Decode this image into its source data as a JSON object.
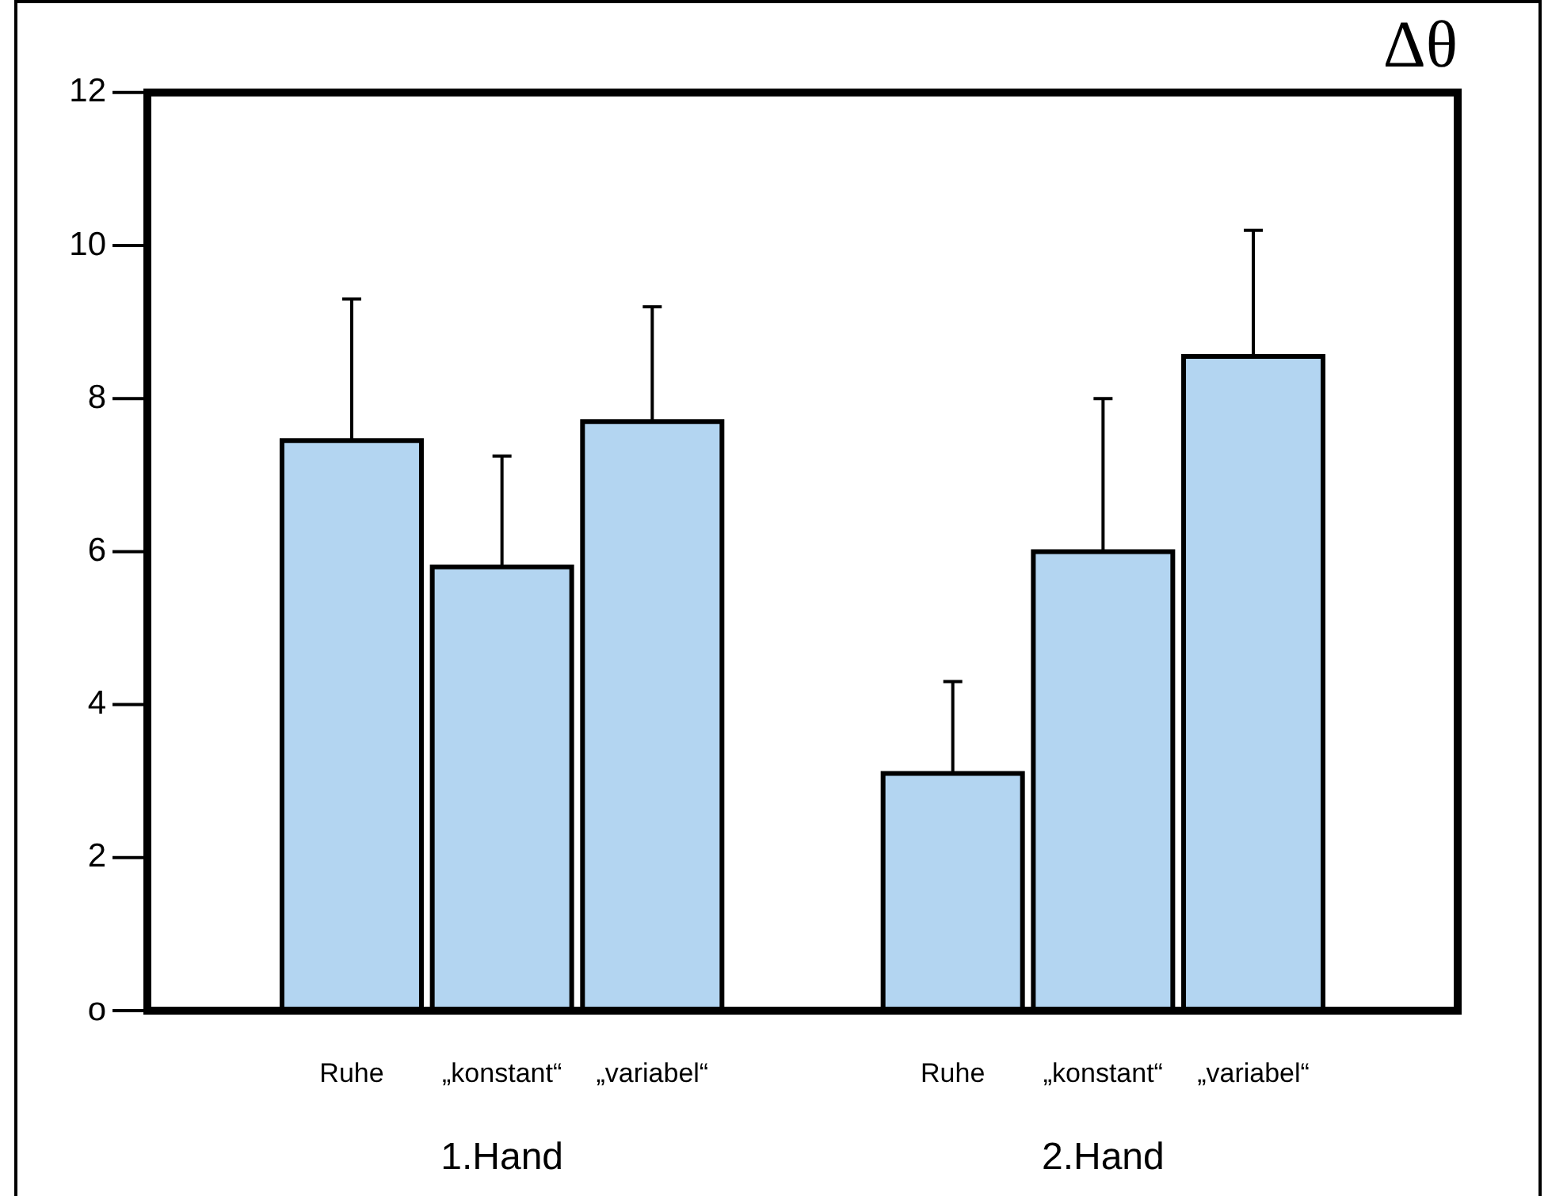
{
  "chart_data": {
    "type": "bar",
    "title": "Δθ",
    "categories": [
      "Ruhe",
      "„konstant“",
      "„variabel“",
      null,
      "Ruhe",
      "„konstant“",
      "„variabel“"
    ],
    "values": [
      7.45,
      5.8,
      7.7,
      null,
      3.1,
      6.0,
      8.55
    ],
    "errors": [
      [
        7.45,
        9.3
      ],
      [
        5.8,
        7.25
      ],
      [
        7.7,
        9.2
      ],
      null,
      [
        3.1,
        4.3
      ],
      [
        6.0,
        8.0
      ],
      [
        8.55,
        10.2
      ]
    ],
    "color": "#b3d5f1",
    "ylim": [
      0,
      12
    ],
    "yticks": [
      {
        "value": 0,
        "label": "o"
      },
      {
        "value": 2,
        "label": "2"
      },
      {
        "value": 4,
        "label": "4"
      },
      {
        "value": 6,
        "label": "6"
      },
      {
        "value": 8,
        "label": "8"
      },
      {
        "value": 10,
        "label": "10"
      },
      {
        "value": 12,
        "label": "12"
      }
    ],
    "grid": false,
    "legend": false,
    "annotations": [
      "1.Hand",
      "2.Hand"
    ]
  }
}
